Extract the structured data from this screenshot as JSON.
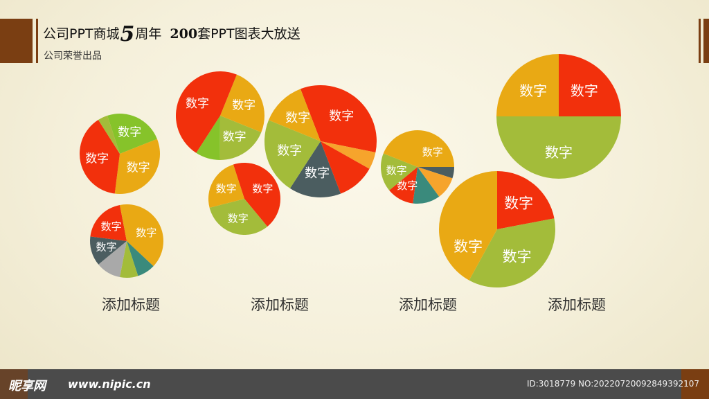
{
  "header": {
    "title_pre": "公司PPT商城",
    "title_num": "5",
    "title_mid": "周年",
    "title_num2": "200",
    "title_post": "套PPT图表大放送",
    "subtitle": "公司荣誉出品"
  },
  "categories": [
    "添加标题",
    "添加标题",
    "添加标题",
    "添加标题"
  ],
  "footer": {
    "brand": "昵享网",
    "site": "www.nipic.cn",
    "image_id": "ID:3018779 NO:20220720092849392107"
  },
  "colors": {
    "red": "#f2300c",
    "orange": "#e9a914",
    "green": "#a3bc3a",
    "lime": "#86c32a",
    "slate": "#4b5d60",
    "teal": "#3a8a7c",
    "light_orange": "#f6a42c",
    "gray": "#a9a9a9",
    "accent_brown": "#7a3e12"
  },
  "chart_data": {
    "type": "pie",
    "title": "",
    "charts": [
      {
        "slices": [
          {
            "value": 24,
            "color": "lime",
            "label": "数字"
          },
          {
            "value": 33,
            "color": "orange",
            "label": "数字"
          },
          {
            "value": 39,
            "color": "red",
            "label": "数字"
          },
          {
            "value": 4,
            "color": "green",
            "label": ""
          }
        ]
      },
      {
        "slices": [
          {
            "value": 37,
            "color": "orange",
            "label": "数字"
          },
          {
            "value": 8,
            "color": "teal",
            "label": ""
          },
          {
            "value": 8,
            "color": "green",
            "label": ""
          },
          {
            "value": 11,
            "color": "gray",
            "label": ""
          },
          {
            "value": 13,
            "color": "slate",
            "label": "数字"
          },
          {
            "value": 20,
            "color": "red",
            "label": "数字"
          },
          {
            "value": 3,
            "color": "orange",
            "label": ""
          }
        ]
      },
      {
        "slices": [
          {
            "value": 25,
            "color": "orange",
            "label": "数字"
          },
          {
            "value": 19,
            "color": "green",
            "label": "数字"
          },
          {
            "value": 9,
            "color": "lime",
            "label": ""
          },
          {
            "value": 47,
            "color": "red",
            "label": "数字"
          }
        ]
      },
      {
        "slices": [
          {
            "value": 44,
            "color": "red",
            "label": "数字"
          },
          {
            "value": 32,
            "color": "green",
            "label": "数字"
          },
          {
            "value": 24,
            "color": "orange",
            "label": "数字"
          }
        ]
      },
      {
        "slices": [
          {
            "value": 34,
            "color": "red",
            "label": "数字"
          },
          {
            "value": 5,
            "color": "light_orange",
            "label": ""
          },
          {
            "value": 11,
            "color": "red",
            "label": ""
          },
          {
            "value": 15,
            "color": "slate",
            "label": "数字"
          },
          {
            "value": 22,
            "color": "green",
            "label": "数字"
          },
          {
            "value": 13,
            "color": "orange",
            "label": "数字"
          }
        ]
      },
      {
        "slices": [
          {
            "value": 25,
            "color": "orange",
            "label": "数字"
          },
          {
            "value": 5,
            "color": "slate",
            "label": ""
          },
          {
            "value": 10,
            "color": "light_orange",
            "label": ""
          },
          {
            "value": 12,
            "color": "teal",
            "label": ""
          },
          {
            "value": 12,
            "color": "red",
            "label": "数字"
          },
          {
            "value": 17,
            "color": "green",
            "label": "数字"
          },
          {
            "value": 19,
            "color": "orange",
            "label": ""
          }
        ]
      },
      {
        "slices": [
          {
            "value": 25,
            "color": "red",
            "label": "数字"
          },
          {
            "value": 50,
            "color": "green",
            "label": "数字"
          },
          {
            "value": 25,
            "color": "orange",
            "label": "数字"
          }
        ]
      },
      {
        "slices": [
          {
            "value": 25,
            "color": "orange",
            "label": ""
          },
          {
            "value": 22,
            "color": "red",
            "label": "数字"
          },
          {
            "value": 36,
            "color": "green",
            "label": "数字"
          },
          {
            "value": 17,
            "color": "orange",
            "label": "数字"
          }
        ]
      }
    ]
  }
}
